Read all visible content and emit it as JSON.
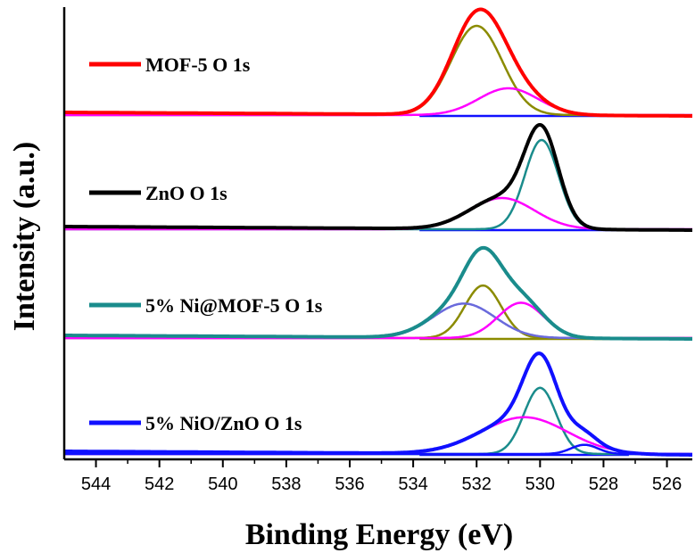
{
  "chart_data": {
    "type": "line",
    "title": "",
    "xlabel": "Binding Energy (eV)",
    "ylabel": "Intensity (a.u.)",
    "x_reversed": true,
    "xlim": [
      545,
      525.2
    ],
    "x_ticks": [
      544,
      542,
      540,
      538,
      536,
      534,
      532,
      530,
      528,
      526
    ],
    "y_ticks_shown": false,
    "grid": false,
    "legend": "inline-left-per-panel",
    "colors": {
      "red": "#ff0000",
      "olive": "#8b8b00",
      "magenta": "#ff00ff",
      "blue": "#1010ff",
      "black": "#000000",
      "teal": "#1a8c8c",
      "slate": "#6a6adc"
    },
    "panels": [
      {
        "label": "MOF-5 O 1s",
        "legend_color": "#ff0000",
        "baseline": 0,
        "envelope": {
          "color": "#ff0000",
          "width": 4
        },
        "components": [
          {
            "center": 532.0,
            "fwhm": 1.9,
            "height": 1.0,
            "color": "#8b8b00"
          },
          {
            "center": 531.0,
            "fwhm": 2.2,
            "height": 0.3,
            "color": "#ff00ff"
          }
        ],
        "background_color": "#1010ff"
      },
      {
        "label": "ZnO O 1s",
        "legend_color": "#000000",
        "baseline": 0,
        "envelope": {
          "color": "#000000",
          "width": 4
        },
        "components": [
          {
            "center": 529.95,
            "fwhm": 1.25,
            "height": 1.0,
            "color": "#1a8c8c"
          },
          {
            "center": 531.2,
            "fwhm": 2.4,
            "height": 0.35,
            "color": "#ff00ff"
          }
        ],
        "background_color": "#1010ff"
      },
      {
        "label": "5% Ni@MOF-5 O 1s",
        "legend_color": "#1a8c8c",
        "baseline": 0,
        "envelope": {
          "color": "#1a8c8c",
          "width": 4
        },
        "components": [
          {
            "center": 531.8,
            "fwhm": 1.35,
            "height": 0.64,
            "color": "#8b8b00"
          },
          {
            "center": 532.4,
            "fwhm": 2.3,
            "height": 0.42,
            "color": "#6a6adc"
          },
          {
            "center": 530.6,
            "fwhm": 1.7,
            "height": 0.43,
            "color": "#ff00ff"
          }
        ],
        "background_color": "#8b8b00"
      },
      {
        "label": "5% NiO/ZnO O 1s",
        "legend_color": "#1010ff",
        "baseline": 0,
        "envelope": {
          "color": "#1010ff",
          "width": 4
        },
        "components": [
          {
            "center": 530.0,
            "fwhm": 1.2,
            "height": 0.72,
            "color": "#1a8c8c"
          },
          {
            "center": 530.5,
            "fwhm": 3.2,
            "height": 0.4,
            "color": "#ff00ff"
          },
          {
            "center": 528.6,
            "fwhm": 1.0,
            "height": 0.1,
            "color": "#1010ff"
          }
        ],
        "background_color": "#1010ff"
      }
    ]
  }
}
